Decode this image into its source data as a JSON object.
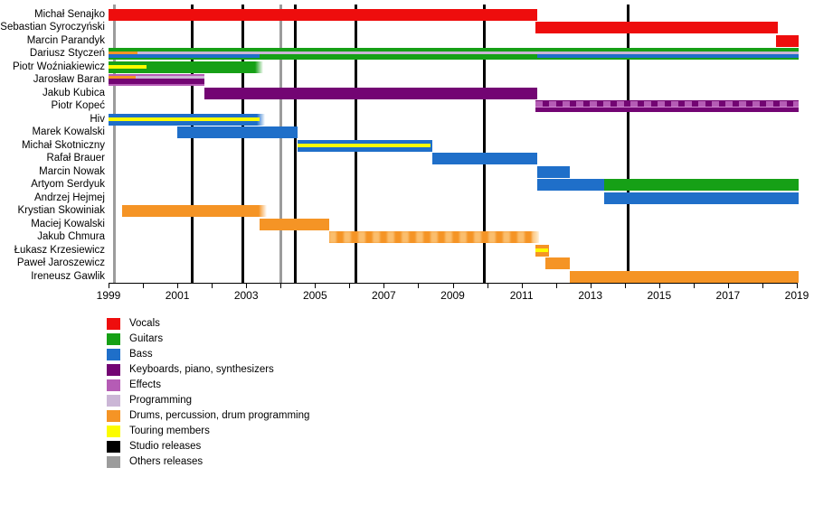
{
  "chart_data": {
    "type": "timeline",
    "title": "",
    "axis": {
      "start": 1999,
      "end": 2019,
      "label_step": 2,
      "minor_step": 1,
      "tick_labels": [
        "1999",
        "2001",
        "2003",
        "2005",
        "2007",
        "2009",
        "2011",
        "2013",
        "2015",
        "2017",
        "2019"
      ]
    },
    "colors": {
      "vocals": "#ee0d0d",
      "guitars": "#16a016",
      "bass": "#1f6fc9",
      "keyboards": "#730573",
      "effects": "#b55cb5",
      "programming": "#cbb6d6",
      "drums": "#f59425",
      "touring": "#fcfc00",
      "studio": "#000000",
      "others": "#9c9c9c"
    },
    "legend": [
      {
        "key": "vocals",
        "label": "Vocals"
      },
      {
        "key": "guitars",
        "label": "Guitars"
      },
      {
        "key": "bass",
        "label": "Bass"
      },
      {
        "key": "keyboards",
        "label": "Keyboards, piano, synthesizers"
      },
      {
        "key": "effects",
        "label": "Effects"
      },
      {
        "key": "programming",
        "label": "Programming"
      },
      {
        "key": "drums",
        "label": "Drums, percussion, drum programming"
      },
      {
        "key": "touring",
        "label": "Touring members"
      },
      {
        "key": "studio",
        "label": "Studio releases"
      },
      {
        "key": "others",
        "label": "Others releases"
      }
    ],
    "release_lines": [
      {
        "type": "others",
        "year": 1999.17
      },
      {
        "type": "studio",
        "year": 2001.42
      },
      {
        "type": "studio",
        "year": 2002.9
      },
      {
        "type": "others",
        "year": 2004.0
      },
      {
        "type": "studio",
        "year": 2004.42
      },
      {
        "type": "studio",
        "year": 2006.18
      },
      {
        "type": "studio",
        "year": 2009.92
      },
      {
        "type": "studio",
        "year": 2014.1
      }
    ],
    "members": [
      {
        "name": "Michał Senajko",
        "segments": [
          {
            "role": "vocals",
            "from": 1999.0,
            "to": 2011.45
          }
        ]
      },
      {
        "name": "Sebastian Syroczyński",
        "segments": [
          {
            "role": "vocals",
            "from": 2011.4,
            "to": 2018.45
          }
        ]
      },
      {
        "name": "Marcin Parandyk",
        "segments": [
          {
            "role": "vocals",
            "from": 2018.4,
            "to": 2019.05
          }
        ]
      },
      {
        "name": "Dariusz Styczeń",
        "segments": [
          {
            "role": "guitars",
            "from": 1999.0,
            "to": 2019.05
          },
          {
            "role": "programming",
            "from": 1999.0,
            "to": 2019.05,
            "lane": {
              "y": 0.28,
              "h": 0.26
            }
          },
          {
            "role": "bass",
            "from": 1999.0,
            "to": 2003.4,
            "lane": {
              "y": 0.54,
              "h": 0.26
            }
          },
          {
            "role": "bass",
            "from": 2011.45,
            "to": 2019.05,
            "lane": {
              "y": 0.54,
              "h": 0.26
            }
          },
          {
            "role": "drums",
            "from": 1999.0,
            "to": 1999.85,
            "lane": {
              "y": 0.28,
              "h": 0.26
            }
          }
        ]
      },
      {
        "name": "Piotr Woźniakiewicz",
        "segments": [
          {
            "role": "guitars",
            "from": 1999.0,
            "to": 2003.5,
            "fade": true
          },
          {
            "role": "touring",
            "from": 1999.0,
            "to": 2000.1,
            "lane": {
              "y": 0.35,
              "h": 0.3
            }
          }
        ]
      },
      {
        "name": "Jarosław Baran",
        "segments": [
          {
            "role": "effects",
            "from": 1999.0,
            "to": 2001.78
          },
          {
            "role": "keyboards",
            "from": 1999.0,
            "to": 2001.78,
            "lane": {
              "y": 0.39,
              "h": 0.4
            }
          },
          {
            "role": "programming",
            "from": 1999.0,
            "to": 2001.78,
            "lane": {
              "y": 0.16,
              "h": 0.23
            }
          },
          {
            "role": "drums",
            "from": 1999.0,
            "to": 1999.8,
            "lane": {
              "y": 0.16,
              "h": 0.23
            }
          }
        ]
      },
      {
        "name": "Jakub Kubica",
        "segments": [
          {
            "role": "keyboards",
            "from": 2001.78,
            "to": 2011.45
          }
        ]
      },
      {
        "name": "Piotr Kopeć",
        "segments": [
          {
            "role": "keyboards",
            "from": 2011.4,
            "to": 2019.05,
            "pattern": "keys-effects"
          }
        ]
      },
      {
        "name": "Hiv",
        "segments": [
          {
            "role": "bass",
            "from": 1999.0,
            "to": 2003.55,
            "fade": true
          },
          {
            "role": "touring",
            "from": 1999.0,
            "to": 2003.4,
            "lane": {
              "y": 0.35,
              "h": 0.3
            }
          }
        ]
      },
      {
        "name": "Marek Kowalski",
        "segments": [
          {
            "role": "bass",
            "from": 2001.0,
            "to": 2004.5
          }
        ]
      },
      {
        "name": "Michał Skotniczny",
        "segments": [
          {
            "role": "bass",
            "from": 2004.5,
            "to": 2008.4
          },
          {
            "role": "touring",
            "from": 2004.5,
            "to": 2008.35,
            "lane": {
              "y": 0.35,
              "h": 0.3
            }
          }
        ]
      },
      {
        "name": "Rafał Brauer",
        "segments": [
          {
            "role": "bass",
            "from": 2008.4,
            "to": 2011.45
          }
        ]
      },
      {
        "name": "Marcin Nowak",
        "segments": [
          {
            "role": "bass",
            "from": 2011.45,
            "to": 2012.4
          }
        ]
      },
      {
        "name": "Artyom Serdyuk",
        "segments": [
          {
            "role": "bass",
            "from": 2011.45,
            "to": 2013.4
          },
          {
            "role": "guitars",
            "from": 2013.4,
            "to": 2019.05
          }
        ]
      },
      {
        "name": "Andrzej Hejmej",
        "segments": [
          {
            "role": "bass",
            "from": 2013.4,
            "to": 2019.05
          }
        ]
      },
      {
        "name": "Krystian Skowiniak",
        "segments": [
          {
            "role": "drums",
            "from": 1999.4,
            "to": 2003.6,
            "fade": true
          }
        ]
      },
      {
        "name": "Maciej Kowalski",
        "segments": [
          {
            "role": "drums",
            "from": 2003.4,
            "to": 2005.4
          }
        ]
      },
      {
        "name": "Jakub Chmura",
        "segments": [
          {
            "role": "drums",
            "from": 2005.4,
            "to": 2011.5,
            "fade": true,
            "pattern": "fuzzy"
          }
        ]
      },
      {
        "name": "Łukasz Krzesiewicz",
        "segments": [
          {
            "role": "drums",
            "from": 2011.4,
            "to": 2011.8
          },
          {
            "role": "touring",
            "from": 2011.4,
            "to": 2011.77,
            "lane": {
              "y": 0.35,
              "h": 0.3
            }
          }
        ]
      },
      {
        "name": "Paweł Jaroszewicz",
        "segments": [
          {
            "role": "drums",
            "from": 2011.7,
            "to": 2012.4
          }
        ]
      },
      {
        "name": "Ireneusz Gawlik",
        "segments": [
          {
            "role": "drums",
            "from": 2012.4,
            "to": 2019.05
          }
        ]
      }
    ]
  }
}
